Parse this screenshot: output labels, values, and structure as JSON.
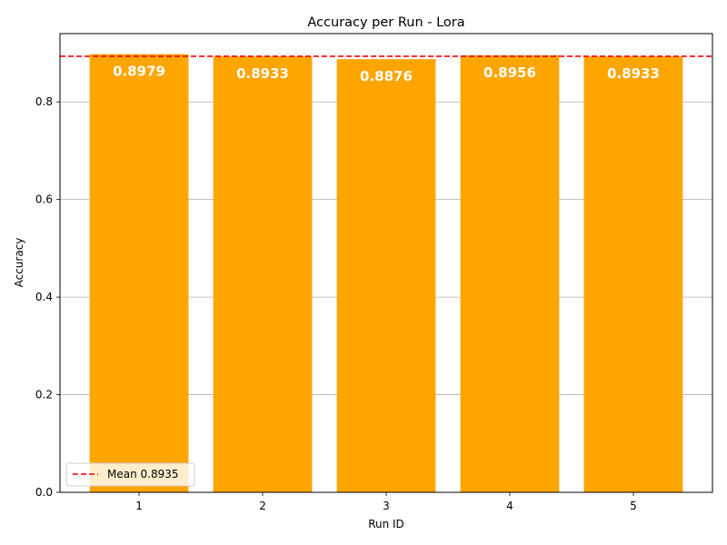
{
  "chart_data": {
    "type": "bar",
    "title": "Accuracy per Run - Lora",
    "xlabel": "Run ID",
    "ylabel": "Accuracy",
    "categories": [
      "1",
      "2",
      "3",
      "4",
      "5"
    ],
    "values": [
      0.8979,
      0.8933,
      0.8876,
      0.8956,
      0.8933
    ],
    "value_labels": [
      "0.8979",
      "0.8933",
      "0.8876",
      "0.8956",
      "0.8933"
    ],
    "ylim": [
      0,
      0.94
    ],
    "yticks": [
      0.0,
      0.2,
      0.4,
      0.6,
      0.8
    ],
    "ytick_labels": [
      "0.0",
      "0.2",
      "0.4",
      "0.6",
      "0.8"
    ],
    "grid": "y",
    "bar_color": "#ffa500",
    "mean": {
      "value": 0.8935,
      "label": "Mean 0.8935",
      "color": "#ff0000",
      "style": "dashed"
    },
    "legend_position": "lower-left"
  }
}
